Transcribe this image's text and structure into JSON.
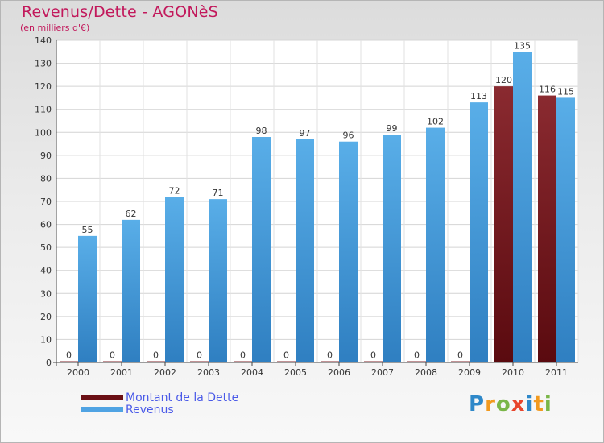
{
  "header": {
    "title": "Revenus/Dette - AGONèS",
    "subtitle": "(en milliers d'€)"
  },
  "chart_data": {
    "type": "bar",
    "title": "Revenus/Dette - AGONèS",
    "ylabel": "(en milliers d'€)",
    "xlabel": "",
    "categories": [
      "2000",
      "2001",
      "2002",
      "2003",
      "2004",
      "2005",
      "2006",
      "2007",
      "2008",
      "2009",
      "2010",
      "2011"
    ],
    "series": [
      {
        "name": "Montant de la Dette",
        "color": "#7a1c22",
        "values": [
          0,
          0,
          0,
          0,
          0,
          0,
          0,
          0,
          0,
          0,
          120,
          116
        ]
      },
      {
        "name": "Revenus",
        "color": "#4fa3e3",
        "values": [
          55,
          62,
          72,
          71,
          98,
          97,
          96,
          99,
          102,
          113,
          135,
          115
        ]
      }
    ],
    "ylim": [
      0,
      140
    ],
    "yticks": [
      0,
      10,
      20,
      30,
      40,
      50,
      60,
      70,
      80,
      90,
      100,
      110,
      120,
      130,
      140
    ],
    "grid": true,
    "legend_position": "bottom-left"
  },
  "legend": {
    "items": [
      {
        "label": "Montant de la Dette",
        "color": "#6b1015"
      },
      {
        "label": "Revenus",
        "color": "#4fa3e3"
      }
    ]
  },
  "logo": {
    "letters": [
      "P",
      "r",
      "o",
      "x",
      "i",
      "t",
      "i"
    ]
  }
}
